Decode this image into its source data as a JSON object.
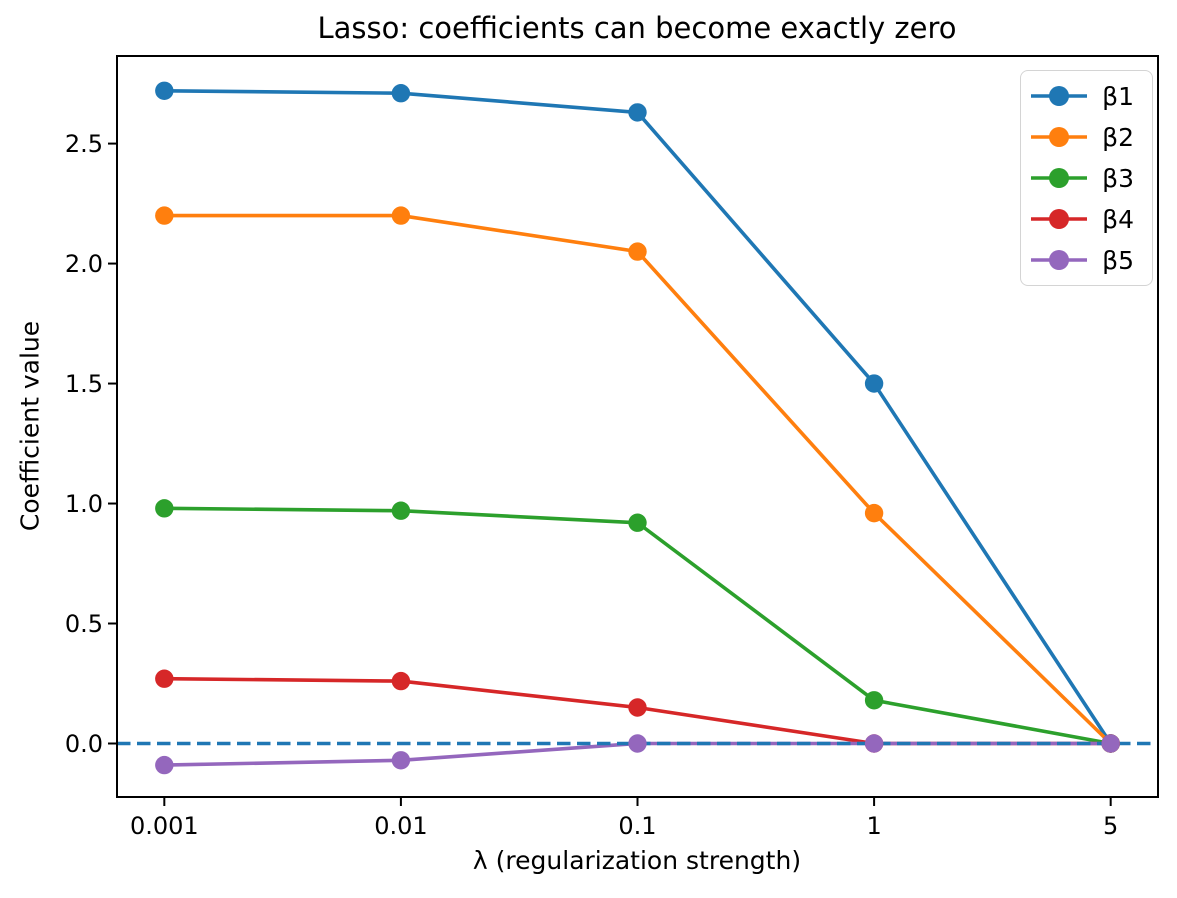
{
  "chart_data": {
    "type": "line",
    "title": "Lasso: coefficients can become exactly zero",
    "xlabel": "λ (regularization strength)",
    "ylabel": "Coefficient value",
    "categories": [
      "0.001",
      "0.01",
      "0.1",
      "1",
      "5"
    ],
    "x_spacing": "categorical-even",
    "series": [
      {
        "name": "β1",
        "color": "#1f77b4",
        "values": [
          2.72,
          2.71,
          2.63,
          1.5,
          0.0
        ]
      },
      {
        "name": "β2",
        "color": "#ff7f0e",
        "values": [
          2.2,
          2.2,
          2.05,
          0.96,
          0.0
        ]
      },
      {
        "name": "β3",
        "color": "#2ca02c",
        "values": [
          0.98,
          0.97,
          0.92,
          0.18,
          0.0
        ]
      },
      {
        "name": "β4",
        "color": "#d62728",
        "values": [
          0.27,
          0.26,
          0.15,
          0.0,
          0.0
        ]
      },
      {
        "name": "β5",
        "color": "#9467bd",
        "values": [
          -0.09,
          -0.07,
          0.0,
          0.0,
          0.0
        ]
      }
    ],
    "y_tick_labels": [
      "0.0",
      "0.5",
      "1.0",
      "1.5",
      "2.0",
      "2.5"
    ],
    "y_tick_values": [
      0.0,
      0.5,
      1.0,
      1.5,
      2.0,
      2.5
    ],
    "ylim": [
      -0.223,
      2.865
    ],
    "xlim_index": [
      -0.2,
      4.2
    ],
    "zero_line": {
      "value": 0.0,
      "color": "#1f77b4",
      "style": "dashed"
    },
    "legend": {
      "position": "upper right",
      "entries": [
        "β1",
        "β2",
        "β3",
        "β4",
        "β5"
      ]
    },
    "grid": false,
    "marker": "circle",
    "frame_color": "#000000"
  }
}
